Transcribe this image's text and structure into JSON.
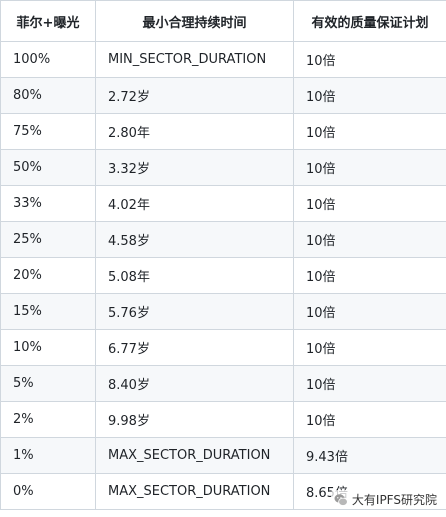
{
  "table": {
    "headers": [
      "菲尔+曝光",
      "最小合理持续时间",
      "有效的质量保证计划"
    ],
    "rows": [
      [
        "100%",
        "MIN_SECTOR_DURATION",
        "10倍"
      ],
      [
        "80%",
        "2.72岁",
        "10倍"
      ],
      [
        "75%",
        "2.80年",
        "10倍"
      ],
      [
        "50%",
        "3.32岁",
        "10倍"
      ],
      [
        "33%",
        "4.02年",
        "10倍"
      ],
      [
        "25%",
        "4.58岁",
        "10倍"
      ],
      [
        "20%",
        "5.08年",
        "10倍"
      ],
      [
        "15%",
        "5.76岁",
        "10倍"
      ],
      [
        "10%",
        "6.77岁",
        "10倍"
      ],
      [
        "5%",
        "8.40岁",
        "10倍"
      ],
      [
        "2%",
        "9.98岁",
        "10倍"
      ],
      [
        "1%",
        "MAX_SECTOR_DURATION",
        "9.43倍"
      ],
      [
        "0%",
        "MAX_SECTOR_DURATION",
        "8.65倍"
      ]
    ]
  },
  "watermark": {
    "text": "大有IPFS研究院",
    "icon": "wechat-icon"
  }
}
